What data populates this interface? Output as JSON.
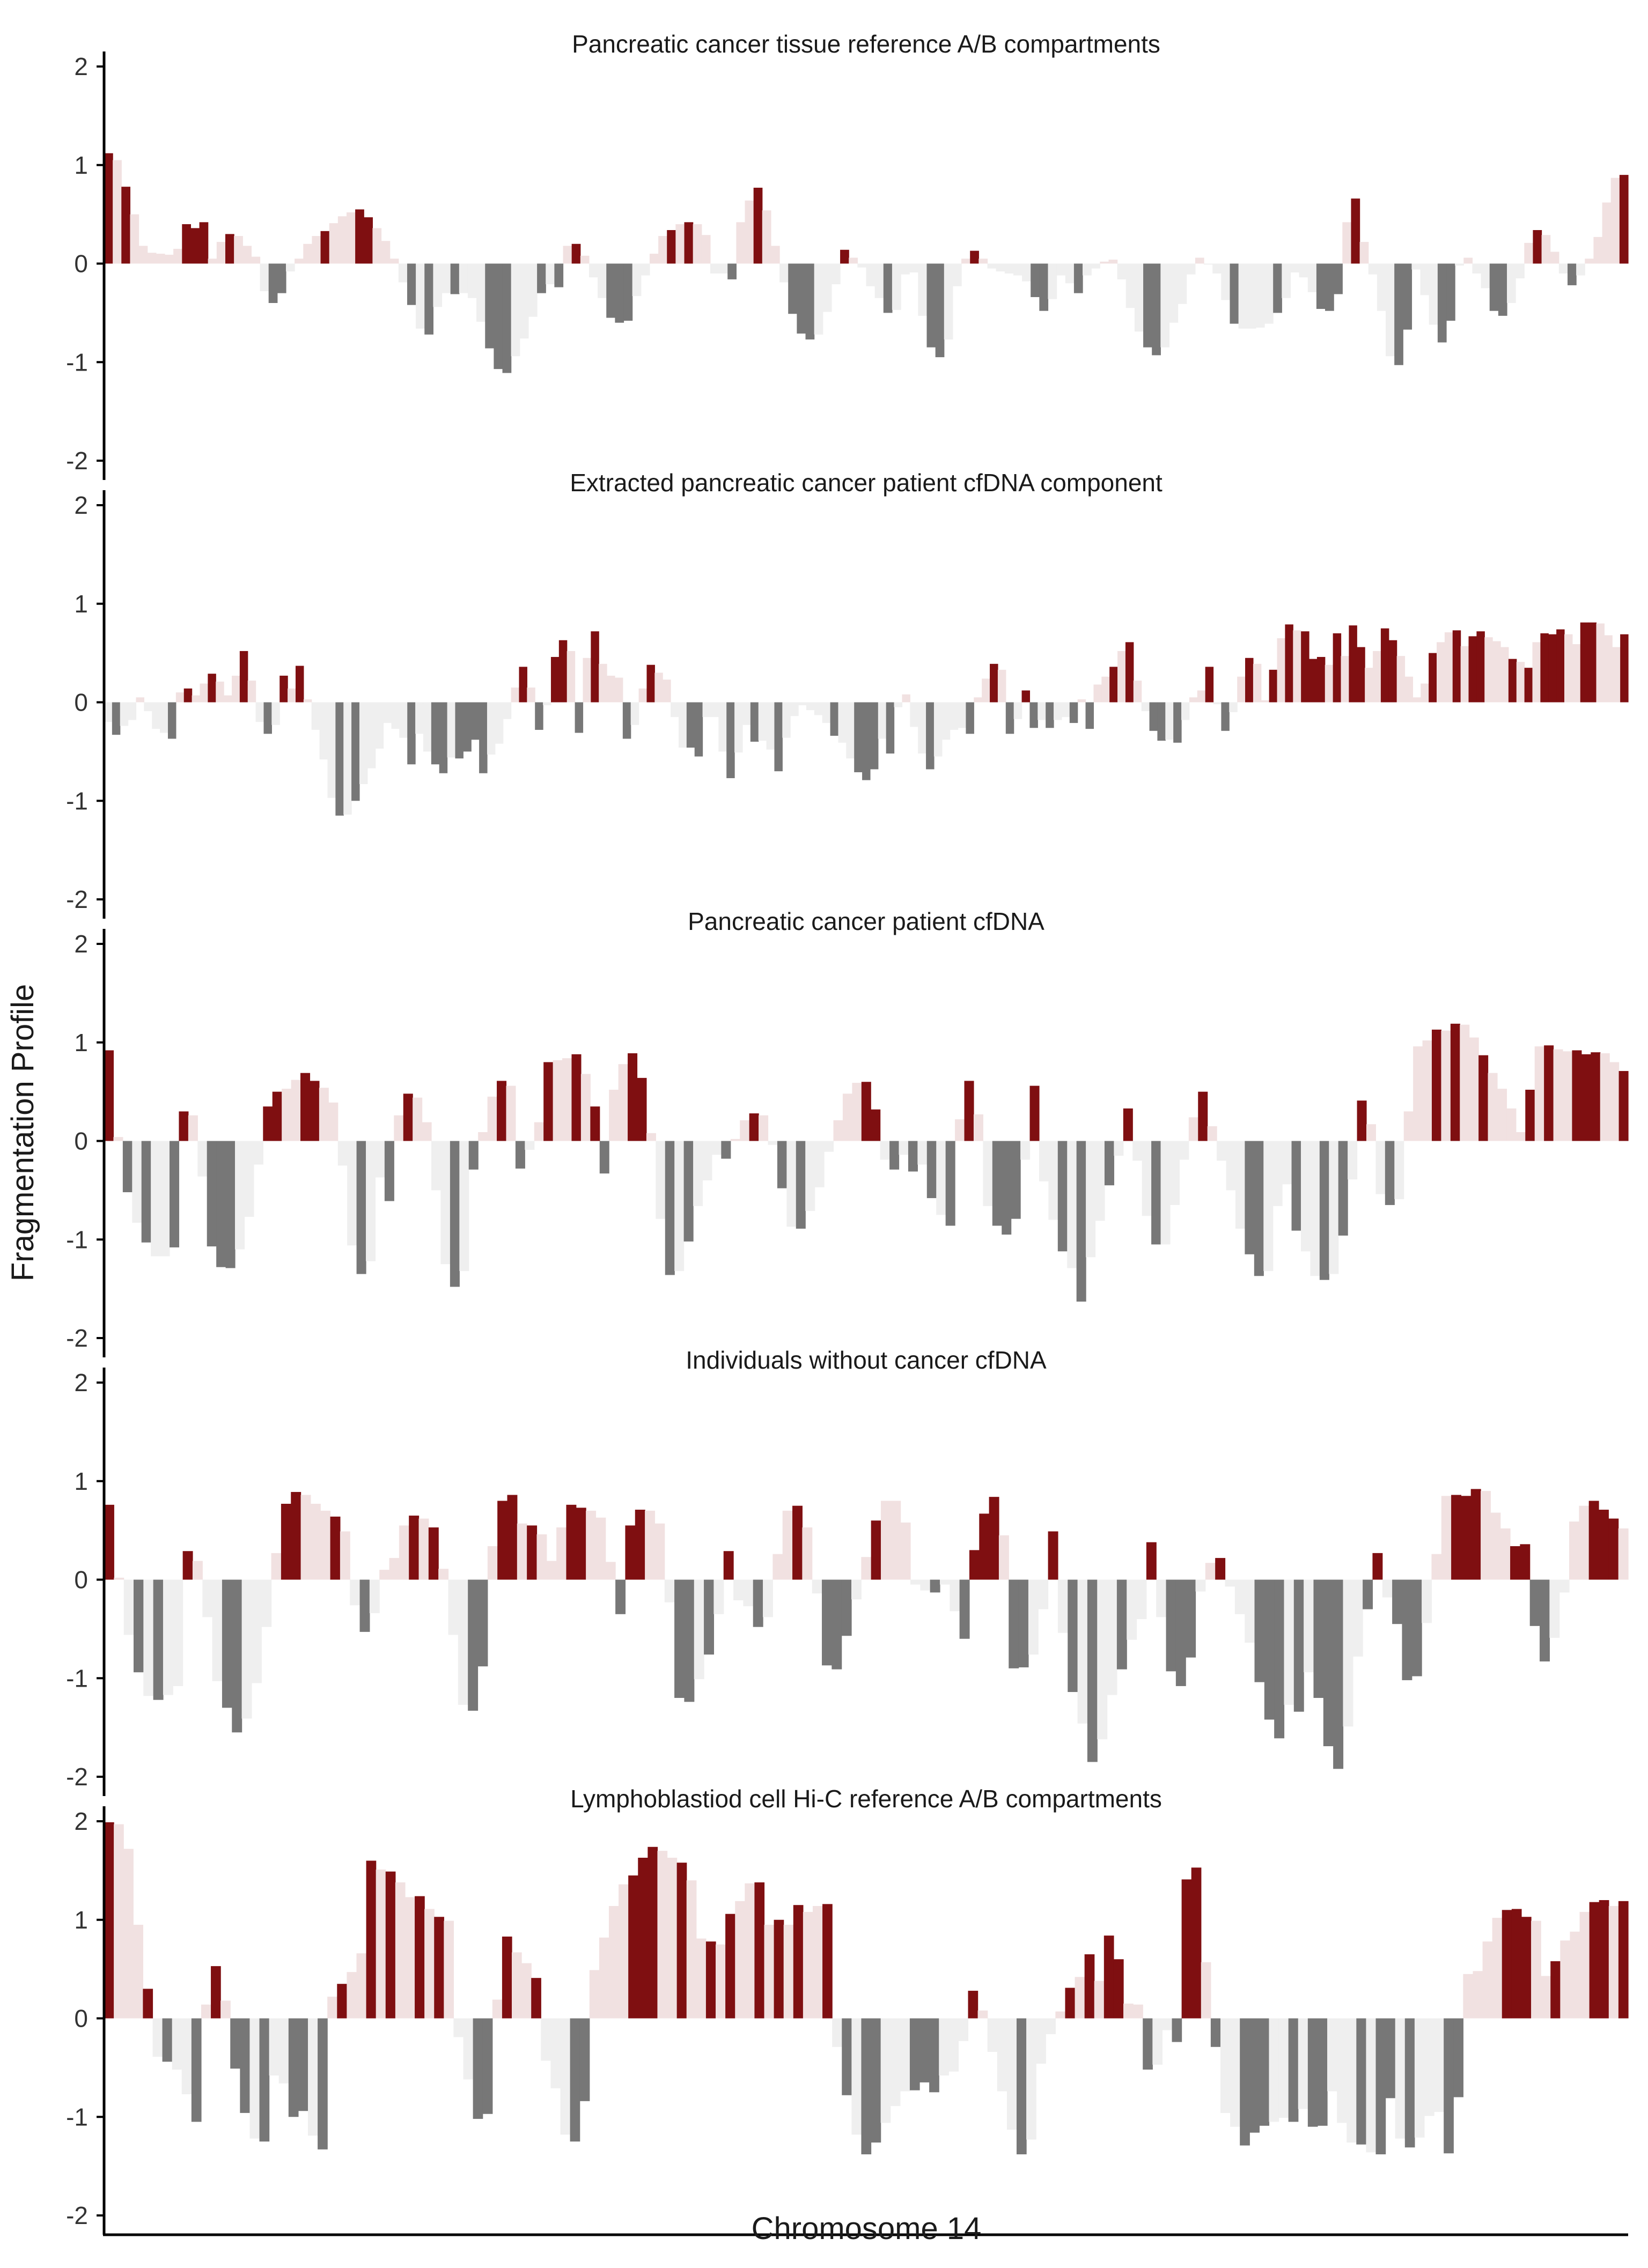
{
  "chart_data": {
    "type": "bar",
    "ylabel": "Fragmentation Profile",
    "xlabel": "Chromosome 14",
    "ylim": [
      -2,
      2
    ],
    "yticks": [
      -2,
      -1,
      0,
      1,
      2
    ],
    "ytick_labels": [
      "-2",
      "-1",
      "0",
      "1",
      "2"
    ],
    "legend": "none",
    "grid": false,
    "colors": {
      "strong_positive": "#7f0f11",
      "weak_positive": "#f1e1e1",
      "strong_negative": "#777777",
      "weak_negative": "#efefef",
      "axis": "#000000"
    },
    "panels": [
      {
        "title": "Pancreatic cancer tissue reference A/B compartments",
        "values": [
          1.12,
          1.05,
          0.78,
          0.5,
          0.18,
          0.11,
          0.1,
          0.09,
          0.15,
          0.4,
          0.36,
          0.42,
          0.05,
          0.22,
          0.3,
          0.28,
          0.18,
          0.07,
          -0.28,
          -0.4,
          -0.3,
          -0.08,
          0.05,
          0.2,
          0.28,
          0.33,
          0.41,
          0.48,
          0.52,
          0.55,
          0.47,
          0.36,
          0.23,
          0.05,
          -0.19,
          -0.42,
          -0.66,
          -0.72,
          -0.44,
          -0.3,
          -0.31,
          -0.3,
          -0.35,
          -0.59,
          -0.86,
          -1.07,
          -1.11,
          -0.94,
          -0.76,
          -0.54,
          -0.3,
          -0.21,
          -0.24,
          0.18,
          0.2,
          0.08,
          -0.14,
          -0.35,
          -0.55,
          -0.6,
          -0.58,
          -0.33,
          -0.12,
          0.1,
          0.28,
          0.34,
          0.4,
          0.42,
          0.4,
          0.29,
          -0.1,
          -0.1,
          -0.16,
          0.42,
          0.64,
          0.77,
          0.54,
          0.18,
          -0.19,
          -0.51,
          -0.71,
          -0.77,
          -0.72,
          -0.49,
          -0.21,
          0.14,
          0.06,
          -0.04,
          -0.23,
          -0.35,
          -0.5,
          -0.47,
          -0.11,
          -0.09,
          -0.53,
          -0.85,
          -0.95,
          -0.77,
          -0.23,
          0.05,
          0.13,
          0.05,
          -0.05,
          -0.08,
          -0.1,
          -0.12,
          -0.18,
          -0.34,
          -0.48,
          -0.36,
          -0.12,
          -0.2,
          -0.3,
          -0.12,
          -0.05,
          0.02,
          0.04,
          -0.16,
          -0.45,
          -0.69,
          -0.85,
          -0.93,
          -0.85,
          -0.6,
          -0.41,
          -0.11,
          0.06,
          -0.01,
          -0.1,
          -0.37,
          -0.61,
          -0.66,
          -0.66,
          -0.65,
          -0.61,
          -0.5,
          -0.35,
          -0.09,
          -0.14,
          -0.29,
          -0.46,
          -0.48,
          -0.31,
          0.42,
          0.66,
          0.22,
          -0.11,
          -0.48,
          -0.94,
          -1.03,
          -0.67,
          -0.06,
          -0.32,
          -0.62,
          -0.8,
          -0.58,
          -0.02,
          0.06,
          -0.1,
          -0.25,
          -0.48,
          -0.53,
          -0.4,
          -0.15,
          0.21,
          0.34,
          0.29,
          0.12,
          -0.1,
          -0.22,
          -0.12,
          0.05,
          0.27,
          0.62,
          0.87,
          0.9
        ]
      },
      {
        "title": "Extracted pancreatic cancer patient cfDNA component",
        "values": [
          -0.2,
          -0.33,
          -0.24,
          -0.18,
          0.05,
          -0.09,
          -0.27,
          -0.31,
          -0.37,
          0.1,
          0.14,
          0.07,
          0.19,
          0.29,
          0.21,
          0.07,
          0.27,
          0.52,
          0.22,
          -0.2,
          -0.32,
          -0.23,
          0.27,
          0.14,
          0.37,
          0.03,
          -0.28,
          -0.58,
          -0.97,
          -1.15,
          -1.14,
          -1.0,
          -0.83,
          -0.67,
          -0.47,
          -0.21,
          -0.27,
          -0.36,
          -0.63,
          -0.32,
          -0.5,
          -0.63,
          -0.72,
          -0.56,
          -0.57,
          -0.5,
          -0.38,
          -0.72,
          -0.53,
          -0.42,
          -0.17,
          0.15,
          0.36,
          0.15,
          -0.28,
          -0.03,
          0.46,
          0.63,
          0.52,
          -0.31,
          0.45,
          0.72,
          0.39,
          0.27,
          0.25,
          -0.37,
          -0.23,
          0.14,
          0.38,
          0.3,
          0.23,
          -0.15,
          -0.46,
          -0.46,
          -0.55,
          -0.15,
          -0.15,
          -0.5,
          -0.77,
          -0.51,
          -0.23,
          -0.4,
          -0.39,
          -0.48,
          -0.7,
          -0.36,
          -0.14,
          -0.03,
          -0.08,
          -0.13,
          -0.21,
          -0.34,
          -0.41,
          -0.57,
          -0.71,
          -0.79,
          -0.68,
          -0.37,
          -0.52,
          -0.05,
          0.08,
          -0.25,
          -0.52,
          -0.68,
          -0.55,
          -0.38,
          -0.28,
          -0.26,
          -0.32,
          0.05,
          0.24,
          0.39,
          0.33,
          -0.32,
          -0.17,
          0.12,
          -0.26,
          -0.18,
          -0.26,
          -0.18,
          -0.15,
          -0.21,
          0.03,
          -0.27,
          0.18,
          0.26,
          0.36,
          0.52,
          0.61,
          0.22,
          -0.09,
          -0.29,
          -0.39,
          -0.38,
          -0.41,
          -0.18,
          0.05,
          0.12,
          0.36,
          -0.02,
          -0.29,
          -0.1,
          0.26,
          0.45,
          0.39,
          0.02,
          0.33,
          0.65,
          0.79,
          0.73,
          0.72,
          0.44,
          0.46,
          0.38,
          0.7,
          0.47,
          0.78,
          0.56,
          0.35,
          0.52,
          0.75,
          0.63,
          0.47,
          0.26,
          0.05,
          0.19,
          0.5,
          0.61,
          0.71,
          0.73,
          0.57,
          0.67,
          0.72,
          0.66,
          0.62,
          0.56,
          0.44,
          0.41,
          0.35,
          0.61,
          0.7,
          0.69,
          0.74,
          0.69,
          0.59,
          0.81,
          0.81,
          0.8,
          0.68,
          0.56,
          0.69
        ]
      },
      {
        "title": "Pancreatic cancer patient cfDNA",
        "values": [
          0.92,
          0.04,
          -0.52,
          -0.83,
          -1.03,
          -1.17,
          -1.17,
          -1.08,
          0.3,
          0.26,
          -0.36,
          -1.07,
          -1.28,
          -1.29,
          -1.1,
          -0.77,
          -0.24,
          0.35,
          0.5,
          0.53,
          0.62,
          0.69,
          0.61,
          0.54,
          0.39,
          -0.25,
          -1.06,
          -1.35,
          -1.22,
          -0.37,
          -0.61,
          0.26,
          0.48,
          0.44,
          0.19,
          -0.5,
          -1.25,
          -1.48,
          -1.32,
          -0.29,
          0.09,
          0.45,
          0.61,
          0.56,
          -0.28,
          -0.09,
          0.19,
          0.8,
          0.82,
          0.84,
          0.88,
          0.68,
          0.35,
          -0.33,
          0.52,
          0.78,
          0.89,
          0.64,
          0.08,
          -0.79,
          -1.36,
          -1.32,
          -1.02,
          -0.66,
          -0.4,
          -0.14,
          -0.18,
          0.02,
          0.21,
          0.28,
          0.26,
          -0.04,
          -0.48,
          -0.87,
          -0.89,
          -0.71,
          -0.47,
          -0.11,
          0.21,
          0.48,
          0.59,
          0.6,
          0.32,
          -0.19,
          -0.29,
          -0.14,
          -0.31,
          -0.24,
          -0.58,
          -0.75,
          -0.86,
          0.22,
          0.61,
          0.27,
          -0.66,
          -0.86,
          -0.95,
          -0.79,
          -0.19,
          0.56,
          -0.41,
          -0.8,
          -1.12,
          -1.29,
          -1.63,
          -1.18,
          -0.81,
          -0.45,
          -0.15,
          0.33,
          -0.2,
          -0.76,
          -1.05,
          -1.05,
          -0.65,
          -0.19,
          0.24,
          0.5,
          0.15,
          -0.2,
          -0.5,
          -0.89,
          -1.15,
          -1.37,
          -1.32,
          -0.66,
          -0.44,
          -0.91,
          -1.12,
          -1.37,
          -1.41,
          -1.35,
          -0.96,
          -0.39,
          0.41,
          0.17,
          -0.54,
          -0.65,
          -0.59,
          0.3,
          0.96,
          1.02,
          1.13,
          1.12,
          1.19,
          1.18,
          1.05,
          0.87,
          0.69,
          0.53,
          0.33,
          0.09,
          0.52,
          0.96,
          0.97,
          0.93,
          0.91,
          0.92,
          0.88,
          0.9,
          0.89,
          0.8,
          0.71
        ]
      },
      {
        "title": "Individuals without cancer cfDNA",
        "values": [
          0.76,
          0.02,
          -0.56,
          -0.94,
          -1.18,
          -1.22,
          -1.17,
          -1.08,
          0.29,
          0.19,
          -0.38,
          -1.03,
          -1.3,
          -1.55,
          -1.41,
          -1.05,
          -0.48,
          0.27,
          0.77,
          0.89,
          0.86,
          0.77,
          0.7,
          0.64,
          0.49,
          -0.26,
          -0.53,
          -0.34,
          0.1,
          0.22,
          0.55,
          0.65,
          0.62,
          0.53,
          0.11,
          -0.56,
          -1.27,
          -1.33,
          -0.88,
          0.34,
          0.8,
          0.86,
          0.57,
          0.55,
          0.46,
          0.19,
          0.53,
          0.76,
          0.73,
          0.7,
          0.63,
          0.18,
          -0.35,
          0.55,
          0.71,
          0.7,
          0.57,
          -0.23,
          -1.2,
          -1.24,
          -1.01,
          -0.76,
          -0.35,
          0.29,
          -0.21,
          -0.27,
          -0.48,
          -0.38,
          0.26,
          0.7,
          0.75,
          0.53,
          -0.14,
          -0.87,
          -0.91,
          -0.57,
          -0.2,
          0.23,
          0.6,
          0.8,
          0.8,
          0.58,
          -0.05,
          -0.11,
          -0.13,
          -0.05,
          -0.32,
          -0.6,
          0.3,
          0.67,
          0.84,
          0.45,
          -0.9,
          -0.89,
          -0.76,
          -0.3,
          0.49,
          -0.54,
          -1.14,
          -1.46,
          -1.85,
          -1.62,
          -1.17,
          -0.91,
          -0.61,
          -0.4,
          0.38,
          -0.38,
          -0.93,
          -1.08,
          -0.79,
          -0.12,
          0.17,
          0.22,
          -0.07,
          -0.35,
          -0.64,
          -1.04,
          -1.42,
          -1.61,
          -1.27,
          -1.34,
          -0.94,
          -1.2,
          -1.69,
          -1.92,
          -1.49,
          -0.78,
          -0.3,
          0.27,
          -0.18,
          -0.45,
          -1.02,
          -0.98,
          -0.44,
          0.26,
          0.85,
          0.86,
          0.85,
          0.92,
          0.9,
          0.68,
          0.52,
          0.34,
          0.36,
          -0.47,
          -0.83,
          -0.59,
          -0.13,
          0.59,
          0.75,
          0.8,
          0.71,
          0.62,
          0.52
        ]
      },
      {
        "title": "Lymphoblastiod cell Hi-C reference A/B compartments",
        "values": [
          1.99,
          1.97,
          1.72,
          0.95,
          0.3,
          -0.39,
          -0.44,
          -0.52,
          -0.77,
          -1.05,
          0.14,
          0.53,
          0.18,
          -0.51,
          -0.96,
          -1.22,
          -1.25,
          -0.58,
          -0.66,
          -1.0,
          -0.94,
          -1.19,
          -1.33,
          0.22,
          0.35,
          0.47,
          0.66,
          1.6,
          1.51,
          1.49,
          1.38,
          1.23,
          1.24,
          1.11,
          1.03,
          0.99,
          -0.19,
          -0.62,
          -1.02,
          -0.97,
          0.19,
          0.83,
          0.67,
          0.56,
          0.41,
          -0.43,
          -0.71,
          -1.18,
          -1.25,
          -0.84,
          0.49,
          0.82,
          1.14,
          1.36,
          1.45,
          1.63,
          1.74,
          1.7,
          1.63,
          1.58,
          1.4,
          0.81,
          0.78,
          0.75,
          1.06,
          1.19,
          1.37,
          1.38,
          0.95,
          1.0,
          0.95,
          1.15,
          1.08,
          1.14,
          1.16,
          -0.29,
          -0.78,
          -1.18,
          -1.38,
          -1.26,
          -1.06,
          -0.89,
          -0.74,
          -0.73,
          -0.65,
          -0.75,
          -0.58,
          -0.54,
          -0.23,
          0.28,
          0.08,
          -0.34,
          -0.74,
          -1.13,
          -1.38,
          -1.23,
          -0.46,
          -0.16,
          0.07,
          0.31,
          0.42,
          0.65,
          0.38,
          0.84,
          0.6,
          0.15,
          0.14,
          -0.52,
          -0.47,
          -0.12,
          -0.24,
          1.41,
          1.53,
          0.57,
          -0.29,
          -0.96,
          -1.1,
          -1.29,
          -1.16,
          -1.09,
          -1.05,
          -1.01,
          -1.05,
          -0.92,
          -1.1,
          -1.09,
          -0.74,
          -1.06,
          -1.26,
          -1.28,
          -1.36,
          -1.38,
          -0.81,
          -1.22,
          -1.31,
          -1.21,
          -0.99,
          -0.95,
          -1.37,
          -0.8,
          0.45,
          0.48,
          0.78,
          1.02,
          1.1,
          1.11,
          1.03,
          0.99,
          0.43,
          0.58,
          0.79,
          0.88,
          1.08,
          1.18,
          1.2,
          1.14,
          1.19
        ]
      }
    ]
  }
}
